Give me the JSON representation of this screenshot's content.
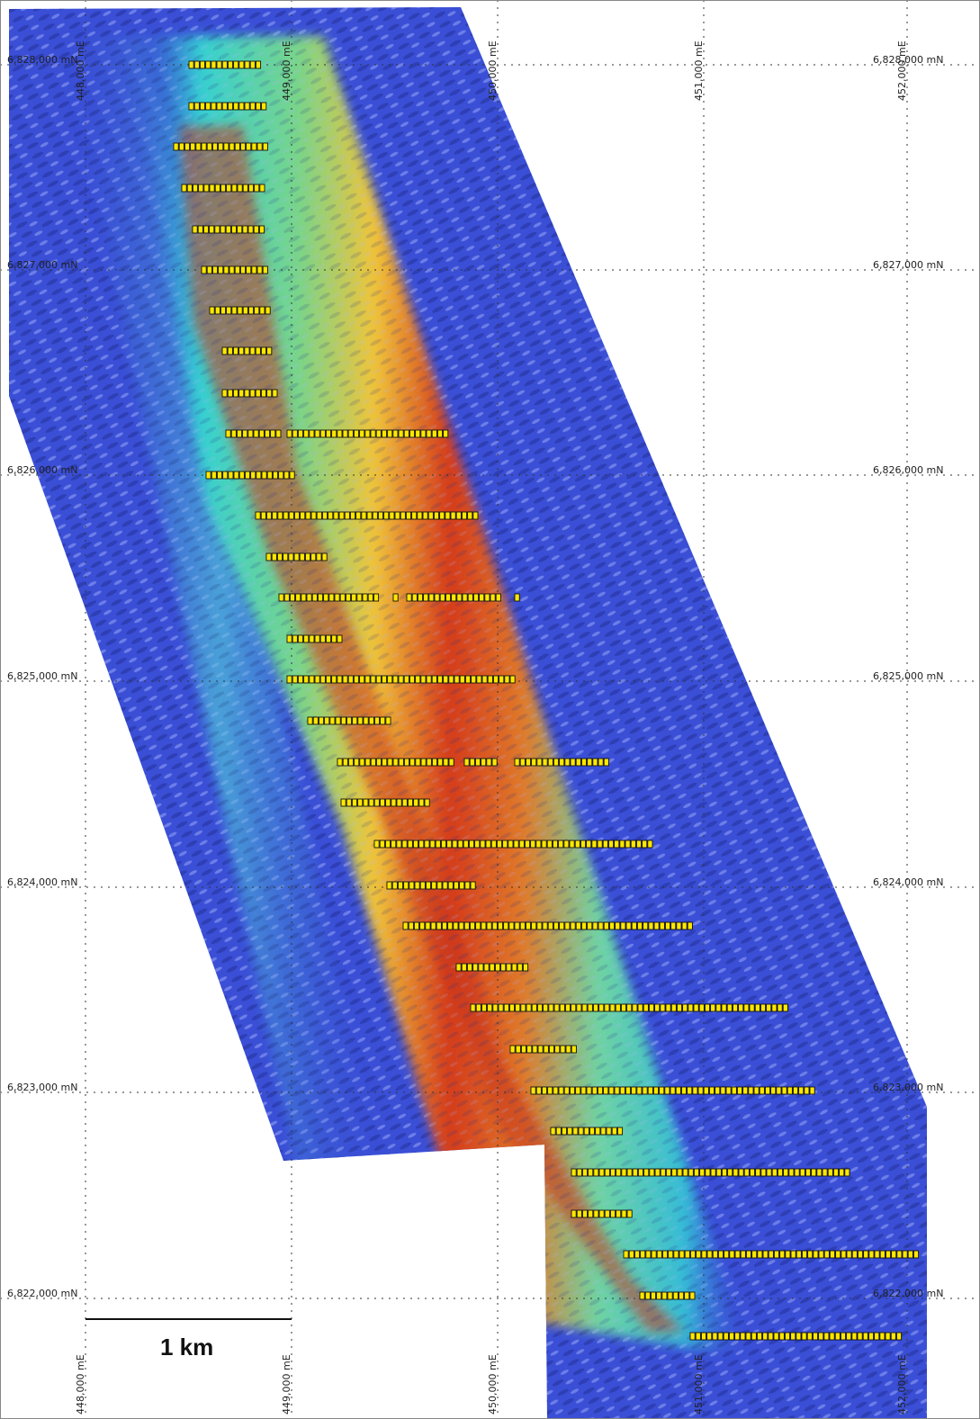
{
  "map": {
    "colors": {
      "background": "#ffffff",
      "low": "#3a4fd6",
      "low_dark": "#2a34a8",
      "mid_cyan": "#35d0d2",
      "mid_green": "#7ad488",
      "high_yellow": "#f0c43a",
      "high_red": "#d43a1c",
      "sample": "#ffe800"
    },
    "easting_labels": [
      "448,000 mE",
      "449,000 mE",
      "450,000 mE",
      "451,000 mE",
      "452,000 mE"
    ],
    "northing_labels": [
      "6,828,000 mN",
      "6,827,000 mN",
      "6,826,000 mN",
      "6,825,000 mN",
      "6,824,000 mN",
      "6,823,000 mN",
      "6,822,000 mN"
    ],
    "scale_bar": {
      "label": "1 km"
    }
  }
}
